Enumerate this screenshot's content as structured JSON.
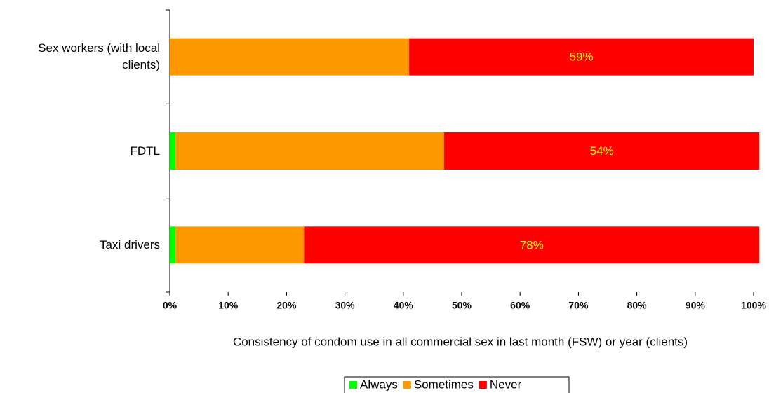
{
  "chart_data": {
    "type": "stacked-bar-horizontal",
    "x_label": "Consistency of condom use in all commercial sex in last month (FSW) or year (clients)",
    "categories": [
      "Sex workers (with local clients)",
      "FDTL",
      "Taxi drivers"
    ],
    "series": [
      {
        "name": "Always",
        "color": "#00ff00",
        "values": [
          0,
          1,
          1
        ]
      },
      {
        "name": "Sometimes",
        "color": "#ff9900",
        "values": [
          41,
          46,
          22
        ]
      },
      {
        "name": "Never",
        "color": "#ff0000",
        "values": [
          59,
          54,
          78
        ],
        "value_labels": [
          "59%",
          "54%",
          "78%"
        ]
      }
    ],
    "xlim": [
      0,
      100
    ],
    "xticks": [
      {
        "value": 0,
        "label": "0%"
      },
      {
        "value": 10,
        "label": "10%"
      },
      {
        "value": 20,
        "label": "20%"
      },
      {
        "value": 30,
        "label": "30%"
      },
      {
        "value": 40,
        "label": "40%"
      },
      {
        "value": 50,
        "label": "50%"
      },
      {
        "value": 60,
        "label": "60%"
      },
      {
        "value": 70,
        "label": "70%"
      },
      {
        "value": 80,
        "label": "80%"
      },
      {
        "value": 90,
        "label": "90%"
      },
      {
        "value": 100,
        "label": "100%"
      }
    ],
    "legend": "bottom",
    "value_label_color": "#ffff00"
  }
}
